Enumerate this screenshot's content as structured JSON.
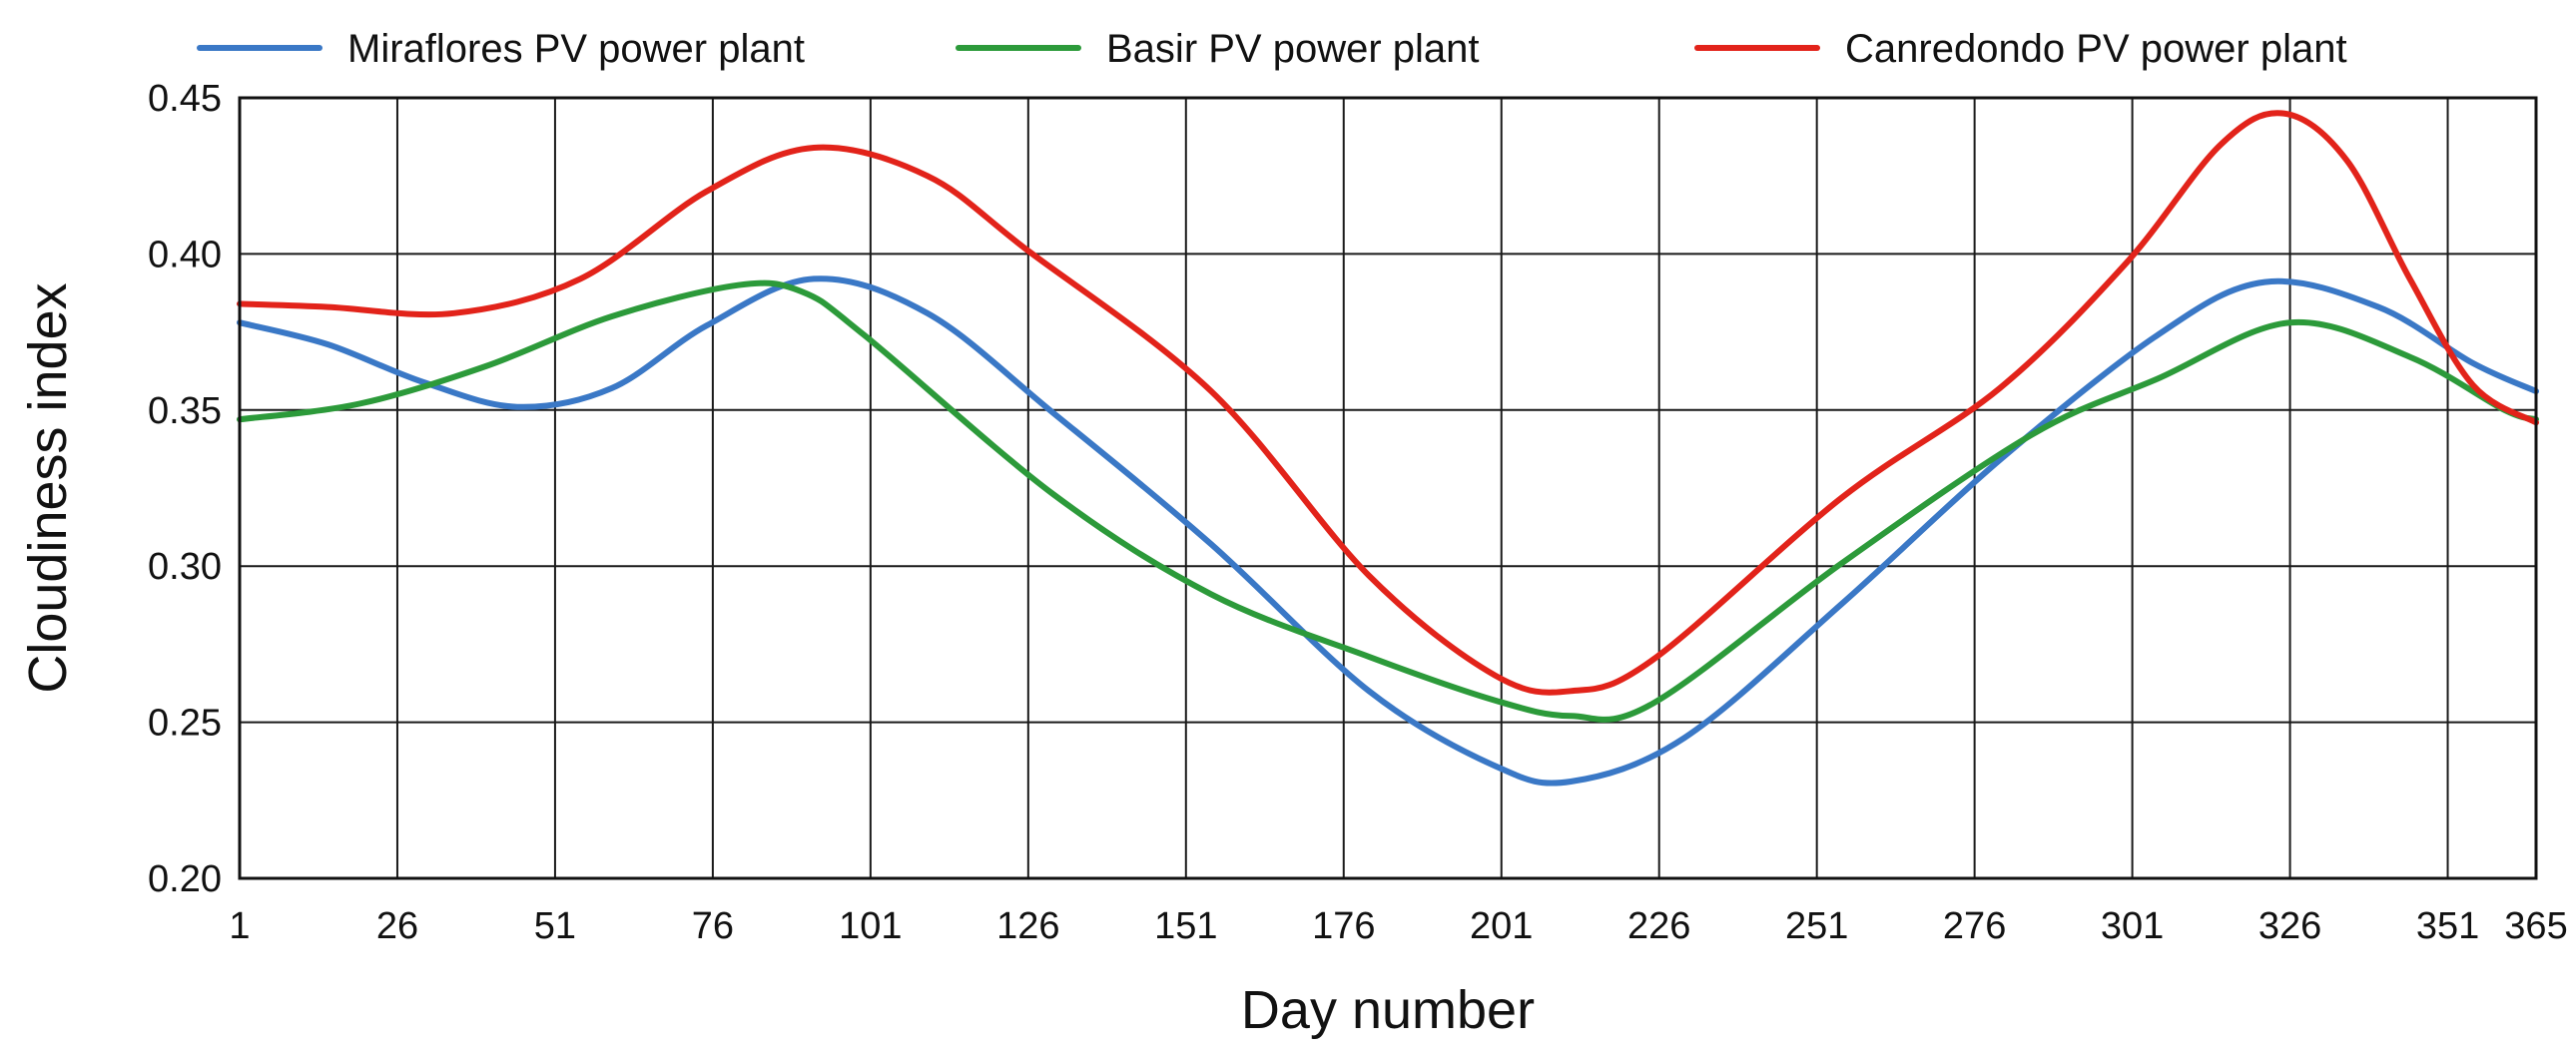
{
  "chart_data": {
    "type": "line",
    "title": "",
    "xlabel": "Day number",
    "ylabel": "Cloudiness index",
    "xlim": [
      1,
      365
    ],
    "ylim": [
      0.2,
      0.45
    ],
    "x_ticks": [
      1,
      26,
      51,
      76,
      101,
      126,
      151,
      176,
      201,
      226,
      251,
      276,
      301,
      326,
      351,
      365
    ],
    "y_ticks": [
      0.2,
      0.25,
      0.3,
      0.35,
      0.4,
      0.45
    ],
    "y_tick_labels": [
      "0.20",
      "0.25",
      "0.30",
      "0.35",
      "0.40",
      "0.45"
    ],
    "grid": true,
    "legend_position": "top",
    "series": [
      {
        "name": "Miraflores PV power plant",
        "color": "#3a78c6",
        "x": [
          1,
          15,
          30,
          45,
          60,
          75,
          92,
          110,
          130,
          155,
          180,
          200,
          212,
          230,
          255,
          280,
          305,
          322,
          340,
          355,
          365
        ],
        "values": [
          0.378,
          0.371,
          0.359,
          0.351,
          0.357,
          0.377,
          0.392,
          0.381,
          0.349,
          0.307,
          0.26,
          0.236,
          0.231,
          0.245,
          0.288,
          0.334,
          0.374,
          0.391,
          0.383,
          0.365,
          0.356
        ]
      },
      {
        "name": "Basir PV power plant",
        "color": "#2c9a3a",
        "x": [
          1,
          20,
          40,
          60,
          80,
          90,
          100,
          130,
          155,
          180,
          200,
          212,
          225,
          255,
          285,
          305,
          326,
          345,
          360,
          365
        ],
        "values": [
          0.347,
          0.352,
          0.364,
          0.38,
          0.39,
          0.388,
          0.374,
          0.323,
          0.291,
          0.271,
          0.257,
          0.252,
          0.256,
          0.301,
          0.342,
          0.36,
          0.378,
          0.367,
          0.35,
          0.347
        ]
      },
      {
        "name": "Canredondo PV power plant",
        "color": "#e2231a",
        "x": [
          1,
          15,
          35,
          55,
          75,
          92,
          110,
          126,
          155,
          180,
          200,
          212,
          225,
          255,
          280,
          300,
          315,
          325,
          335,
          345,
          355,
          365
        ],
        "values": [
          0.384,
          0.383,
          0.381,
          0.392,
          0.42,
          0.434,
          0.425,
          0.401,
          0.356,
          0.297,
          0.265,
          0.26,
          0.27,
          0.322,
          0.357,
          0.397,
          0.435,
          0.445,
          0.43,
          0.392,
          0.358,
          0.346
        ]
      }
    ]
  }
}
